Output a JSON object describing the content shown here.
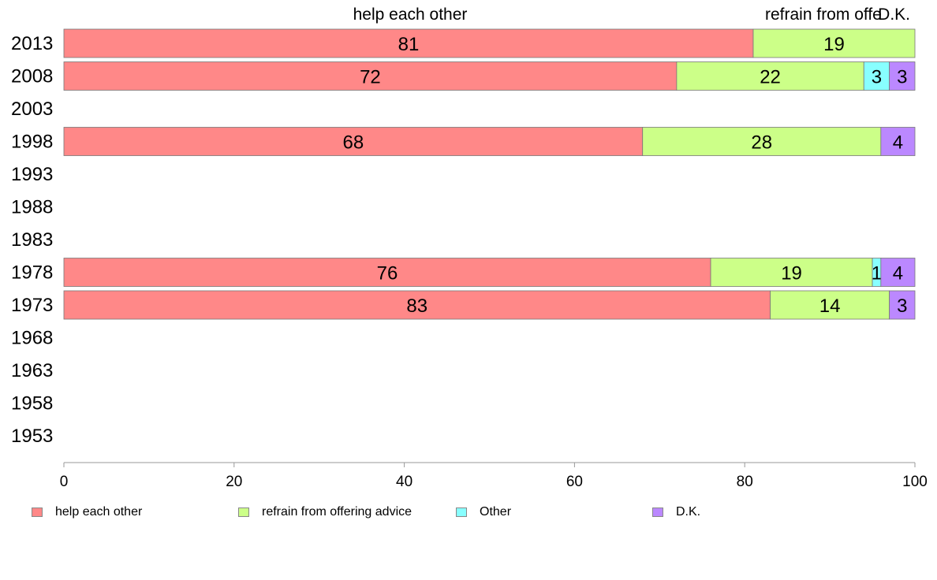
{
  "chart_data": {
    "type": "bar",
    "orientation": "horizontal",
    "stacked": true,
    "categories": [
      "2013",
      "2008",
      "2003",
      "1998",
      "1993",
      "1988",
      "1983",
      "1978",
      "1973",
      "1968",
      "1963",
      "1958",
      "1953"
    ],
    "series": [
      {
        "name": "help each other",
        "color": "#ff8888",
        "values": [
          81,
          72,
          null,
          68,
          null,
          null,
          null,
          76,
          83,
          null,
          null,
          null,
          null
        ]
      },
      {
        "name": "refrain from offering advice",
        "color": "#ccff88",
        "values": [
          19,
          22,
          null,
          28,
          null,
          null,
          null,
          19,
          14,
          null,
          null,
          null,
          null
        ]
      },
      {
        "name": "Other",
        "color": "#88ffff",
        "values": [
          0,
          3,
          null,
          0,
          null,
          null,
          null,
          1,
          0,
          null,
          null,
          null,
          null
        ]
      },
      {
        "name": "D.K.",
        "color": "#bb88ff",
        "values": [
          0,
          3,
          null,
          4,
          null,
          null,
          null,
          4,
          3,
          null,
          null,
          null,
          null
        ]
      }
    ],
    "top_labels": [
      "help each other",
      "refrain from offe",
      "D.K."
    ],
    "xlim": [
      0,
      100
    ],
    "xticks": [
      0,
      20,
      40,
      60,
      80,
      100
    ],
    "grid": false,
    "legend_position": "bottom"
  }
}
